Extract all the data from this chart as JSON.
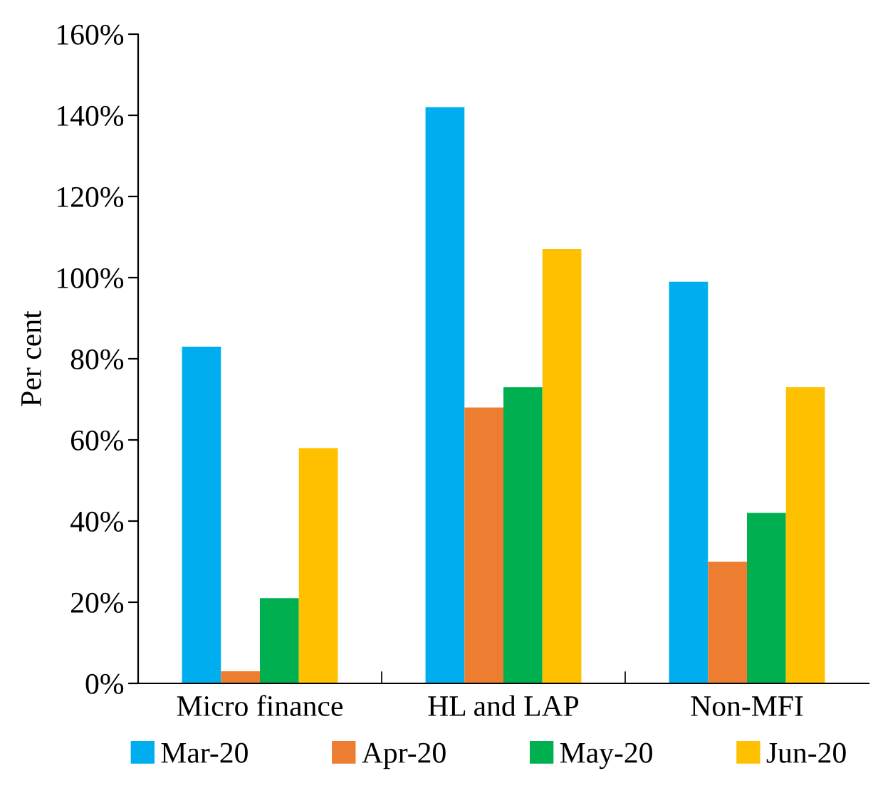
{
  "chart_data": {
    "type": "bar",
    "ylabel": "Per cent",
    "categories": [
      "Micro finance",
      "HL and LAP",
      "Non-MFI"
    ],
    "series": [
      {
        "name": "Mar-20",
        "color": "#00aeef",
        "values": [
          83,
          142,
          99
        ]
      },
      {
        "name": "Apr-20",
        "color": "#ed7d31",
        "values": [
          3,
          68,
          30
        ]
      },
      {
        "name": "May-20",
        "color": "#00b050",
        "values": [
          21,
          73,
          42
        ]
      },
      {
        "name": "Jun-20",
        "color": "#ffc000",
        "values": [
          58,
          107,
          73
        ]
      }
    ],
    "ylim": [
      0,
      160
    ],
    "yticks": [
      {
        "value": 0,
        "label": "0%"
      },
      {
        "value": 20,
        "label": "20%"
      },
      {
        "value": 40,
        "label": "40%"
      },
      {
        "value": 60,
        "label": "60%"
      },
      {
        "value": 80,
        "label": "80%"
      },
      {
        "value": 100,
        "label": "100%"
      },
      {
        "value": 120,
        "label": "120%"
      },
      {
        "value": 140,
        "label": "140%"
      },
      {
        "value": 160,
        "label": "160%"
      }
    ],
    "grid": false,
    "legend": "bottom"
  }
}
